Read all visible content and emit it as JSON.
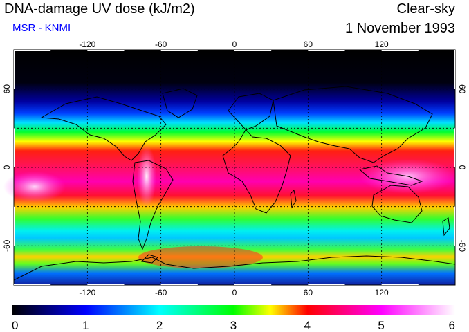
{
  "header": {
    "title": "DNA-damage UV dose (kJ/m2)",
    "source": "MSR - KNMI",
    "sky": "Clear-sky",
    "date": "1 November 1993"
  },
  "map": {
    "lon_labels": [
      "-120",
      "-60",
      "0",
      "60",
      "120"
    ],
    "lon_values": [
      -120,
      -60,
      0,
      60,
      120
    ],
    "lat_labels": [
      "60",
      "0",
      "-60"
    ],
    "lat_values": [
      60,
      0,
      -60
    ],
    "lon_range": [
      -180,
      180
    ],
    "lat_range": [
      -90,
      90
    ],
    "gridlines": true
  },
  "colorbar": {
    "labels": [
      "0",
      "1",
      "2",
      "3",
      "4",
      "5",
      "6"
    ],
    "range": [
      0,
      6
    ],
    "colors": [
      "#000000",
      "#0000ff",
      "#00ffff",
      "#00ff00",
      "#ffff00",
      "#ff0000",
      "#ff00ff",
      "#ffffff"
    ]
  }
}
